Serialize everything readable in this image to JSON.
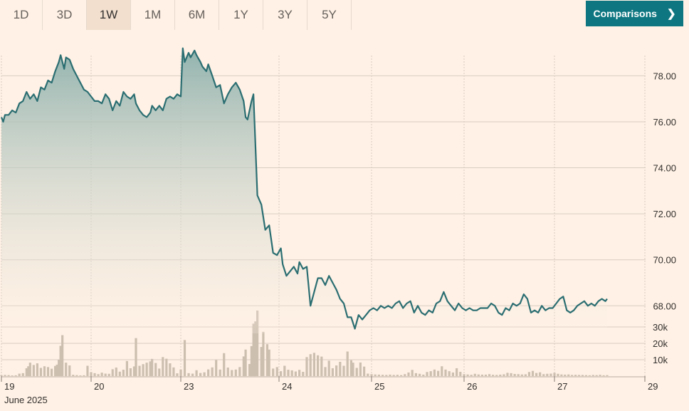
{
  "tabs": [
    {
      "label": "1D",
      "active": false
    },
    {
      "label": "3D",
      "active": false
    },
    {
      "label": "1W",
      "active": true
    },
    {
      "label": "1M",
      "active": false
    },
    {
      "label": "6M",
      "active": false
    },
    {
      "label": "1Y",
      "active": false
    },
    {
      "label": "3Y",
      "active": false
    },
    {
      "label": "5Y",
      "active": false
    }
  ],
  "comparisons": {
    "label": "Comparisons",
    "icon": "chevron-right-icon"
  },
  "colors": {
    "background": "#fff1e5",
    "line": "#2b6e72",
    "area_top": "#8cb0ab",
    "volume": "#cdbfb0",
    "grid": "#d9ccc1",
    "button": "#0d7680"
  },
  "chart_data": {
    "type": "line",
    "price_axis": {
      "ylim": [
        66.8,
        79.5
      ],
      "ticks": [
        68,
        70,
        72,
        74,
        76,
        78
      ],
      "tick_labels": [
        "68.00",
        "70.00",
        "72.00",
        "74.00",
        "76.00",
        "78.00"
      ]
    },
    "volume_axis": {
      "ylim": [
        0,
        40000
      ],
      "ticks": [
        10000,
        20000,
        30000
      ],
      "tick_labels": [
        "10k",
        "20k",
        "30k"
      ]
    },
    "x_axis": {
      "tick_labels": [
        "19",
        "20",
        "23",
        "24",
        "25",
        "26",
        "27",
        "29"
      ],
      "tick_days": [
        0,
        1,
        2,
        3,
        4,
        5,
        6,
        7.03
      ],
      "sublabel": "June 2025",
      "xlim": [
        0,
        7.1
      ]
    },
    "price_series": [
      [
        0.0,
        76.2
      ],
      [
        0.02,
        76.0
      ],
      [
        0.04,
        76.3
      ],
      [
        0.08,
        76.3
      ],
      [
        0.12,
        76.5
      ],
      [
        0.16,
        76.4
      ],
      [
        0.2,
        76.8
      ],
      [
        0.24,
        76.9
      ],
      [
        0.28,
        77.3
      ],
      [
        0.32,
        77.0
      ],
      [
        0.36,
        77.2
      ],
      [
        0.4,
        76.9
      ],
      [
        0.44,
        77.5
      ],
      [
        0.48,
        77.4
      ],
      [
        0.52,
        77.8
      ],
      [
        0.56,
        77.7
      ],
      [
        0.6,
        78.2
      ],
      [
        0.64,
        78.6
      ],
      [
        0.66,
        78.9
      ],
      [
        0.7,
        78.3
      ],
      [
        0.72,
        78.8
      ],
      [
        0.76,
        78.7
      ],
      [
        0.8,
        78.3
      ],
      [
        0.84,
        78.0
      ],
      [
        0.88,
        77.7
      ],
      [
        0.92,
        77.4
      ],
      [
        0.96,
        77.3
      ],
      [
        1.0,
        77.1
      ],
      [
        1.04,
        76.9
      ],
      [
        1.08,
        76.9
      ],
      [
        1.12,
        76.8
      ],
      [
        1.16,
        77.2
      ],
      [
        1.2,
        77.0
      ],
      [
        1.24,
        76.5
      ],
      [
        1.28,
        76.9
      ],
      [
        1.32,
        76.7
      ],
      [
        1.36,
        77.3
      ],
      [
        1.4,
        77.1
      ],
      [
        1.44,
        77.0
      ],
      [
        1.48,
        77.2
      ],
      [
        1.5,
        76.8
      ],
      [
        1.54,
        76.5
      ],
      [
        1.58,
        76.3
      ],
      [
        1.62,
        76.2
      ],
      [
        1.66,
        76.4
      ],
      [
        1.68,
        76.7
      ],
      [
        1.72,
        76.5
      ],
      [
        1.76,
        76.7
      ],
      [
        1.8,
        76.5
      ],
      [
        1.84,
        77.0
      ],
      [
        1.88,
        77.1
      ],
      [
        1.92,
        77.0
      ],
      [
        1.96,
        77.2
      ],
      [
        2.0,
        77.1
      ],
      [
        2.02,
        79.2
      ],
      [
        2.04,
        78.6
      ],
      [
        2.08,
        79.0
      ],
      [
        2.1,
        78.8
      ],
      [
        2.14,
        79.1
      ],
      [
        2.16,
        78.9
      ],
      [
        2.2,
        78.6
      ],
      [
        2.22,
        78.4
      ],
      [
        2.26,
        78.2
      ],
      [
        2.28,
        78.5
      ],
      [
        2.32,
        78.0
      ],
      [
        2.36,
        77.5
      ],
      [
        2.4,
        77.6
      ],
      [
        2.44,
        76.8
      ],
      [
        2.48,
        77.2
      ],
      [
        2.52,
        77.5
      ],
      [
        2.56,
        77.7
      ],
      [
        2.6,
        77.4
      ],
      [
        2.64,
        76.9
      ],
      [
        2.66,
        76.2
      ],
      [
        2.68,
        76.1
      ],
      [
        2.72,
        76.9
      ],
      [
        2.74,
        77.2
      ],
      [
        2.78,
        72.8
      ],
      [
        2.82,
        72.4
      ],
      [
        2.86,
        71.3
      ],
      [
        2.9,
        71.5
      ],
      [
        2.94,
        70.3
      ],
      [
        2.98,
        70.2
      ],
      [
        3.02,
        70.5
      ],
      [
        3.04,
        69.8
      ],
      [
        3.08,
        69.3
      ],
      [
        3.12,
        69.5
      ],
      [
        3.16,
        69.7
      ],
      [
        3.2,
        69.4
      ],
      [
        3.22,
        69.9
      ],
      [
        3.26,
        69.6
      ],
      [
        3.3,
        69.7
      ],
      [
        3.34,
        68.0
      ],
      [
        3.38,
        68.6
      ],
      [
        3.42,
        69.2
      ],
      [
        3.46,
        69.2
      ],
      [
        3.5,
        68.9
      ],
      [
        3.54,
        69.3
      ],
      [
        3.58,
        69.0
      ],
      [
        3.62,
        68.7
      ],
      [
        3.66,
        68.3
      ],
      [
        3.7,
        68.1
      ],
      [
        3.74,
        67.5
      ],
      [
        3.78,
        67.5
      ],
      [
        3.82,
        67.0
      ],
      [
        3.86,
        67.6
      ],
      [
        3.9,
        67.4
      ],
      [
        3.94,
        67.6
      ],
      [
        3.98,
        67.8
      ],
      [
        4.02,
        67.9
      ],
      [
        4.06,
        67.8
      ],
      [
        4.1,
        68.0
      ],
      [
        4.14,
        67.9
      ],
      [
        4.18,
        68.0
      ],
      [
        4.22,
        67.9
      ],
      [
        4.26,
        68.1
      ],
      [
        4.3,
        68.2
      ],
      [
        4.34,
        67.9
      ],
      [
        4.38,
        68.1
      ],
      [
        4.42,
        68.2
      ],
      [
        4.46,
        67.7
      ],
      [
        4.5,
        68.0
      ],
      [
        4.54,
        67.7
      ],
      [
        4.58,
        67.6
      ],
      [
        4.62,
        67.8
      ],
      [
        4.66,
        67.7
      ],
      [
        4.7,
        68.1
      ],
      [
        4.74,
        68.2
      ],
      [
        4.78,
        68.6
      ],
      [
        4.82,
        68.2
      ],
      [
        4.86,
        68.0
      ],
      [
        4.9,
        67.8
      ],
      [
        4.94,
        68.1
      ],
      [
        4.98,
        67.9
      ],
      [
        5.02,
        67.8
      ],
      [
        5.06,
        67.9
      ],
      [
        5.1,
        67.8
      ],
      [
        5.14,
        67.8
      ],
      [
        5.18,
        67.9
      ],
      [
        5.22,
        67.9
      ],
      [
        5.26,
        67.9
      ],
      [
        5.3,
        68.1
      ],
      [
        5.34,
        68.0
      ],
      [
        5.38,
        67.7
      ],
      [
        5.42,
        67.6
      ],
      [
        5.46,
        67.9
      ],
      [
        5.5,
        67.8
      ],
      [
        5.54,
        68.1
      ],
      [
        5.58,
        68.0
      ],
      [
        5.62,
        68.1
      ],
      [
        5.66,
        68.5
      ],
      [
        5.7,
        68.3
      ],
      [
        5.74,
        67.7
      ],
      [
        5.78,
        67.8
      ],
      [
        5.82,
        67.7
      ],
      [
        5.86,
        68.0
      ],
      [
        5.9,
        67.8
      ],
      [
        5.94,
        67.9
      ],
      [
        5.98,
        67.9
      ],
      [
        6.02,
        68.1
      ],
      [
        6.06,
        68.3
      ],
      [
        6.1,
        68.4
      ],
      [
        6.14,
        67.8
      ],
      [
        6.18,
        67.7
      ],
      [
        6.22,
        67.8
      ],
      [
        6.26,
        68.0
      ],
      [
        6.3,
        68.1
      ],
      [
        6.34,
        68.2
      ],
      [
        6.38,
        68.0
      ],
      [
        6.42,
        68.1
      ],
      [
        6.46,
        68.0
      ],
      [
        6.5,
        68.2
      ],
      [
        6.54,
        68.3
      ],
      [
        6.58,
        68.2
      ],
      [
        6.6,
        68.3
      ]
    ],
    "volume_series": [
      [
        0.0,
        600
      ],
      [
        0.04,
        700
      ],
      [
        0.08,
        600
      ],
      [
        0.12,
        400
      ],
      [
        0.16,
        500
      ],
      [
        0.2,
        1500
      ],
      [
        0.24,
        1800
      ],
      [
        0.28,
        4800
      ],
      [
        0.3,
        6000
      ],
      [
        0.32,
        8200
      ],
      [
        0.36,
        6800
      ],
      [
        0.4,
        7800
      ],
      [
        0.44,
        5000
      ],
      [
        0.48,
        6000
      ],
      [
        0.52,
        5500
      ],
      [
        0.56,
        4500
      ],
      [
        0.6,
        6200
      ],
      [
        0.62,
        7000
      ],
      [
        0.64,
        10000
      ],
      [
        0.66,
        18500
      ],
      [
        0.68,
        25000
      ],
      [
        0.72,
        8200
      ],
      [
        0.76,
        6500
      ],
      [
        0.8,
        800
      ],
      [
        0.84,
        600
      ],
      [
        0.88,
        400
      ],
      [
        0.92,
        500
      ],
      [
        0.96,
        6300
      ],
      [
        1.0,
        2400
      ],
      [
        1.04,
        1800
      ],
      [
        1.08,
        1200
      ],
      [
        1.12,
        2100
      ],
      [
        1.16,
        1500
      ],
      [
        1.2,
        1400
      ],
      [
        1.24,
        4200
      ],
      [
        1.28,
        5200
      ],
      [
        1.32,
        2700
      ],
      [
        1.36,
        3900
      ],
      [
        1.4,
        9200
      ],
      [
        1.44,
        4800
      ],
      [
        1.48,
        5900
      ],
      [
        1.5,
        23200
      ],
      [
        1.54,
        6300
      ],
      [
        1.58,
        7300
      ],
      [
        1.62,
        8200
      ],
      [
        1.66,
        9000
      ],
      [
        1.68,
        10500
      ],
      [
        1.72,
        8000
      ],
      [
        1.76,
        4600
      ],
      [
        1.8,
        11600
      ],
      [
        1.84,
        10600
      ],
      [
        1.88,
        7800
      ],
      [
        1.92,
        5300
      ],
      [
        1.96,
        1700
      ],
      [
        2.0,
        4000
      ],
      [
        2.04,
        22000
      ],
      [
        2.08,
        1800
      ],
      [
        2.12,
        1500
      ],
      [
        2.16,
        3600
      ],
      [
        2.2,
        1900
      ],
      [
        2.24,
        2300
      ],
      [
        2.28,
        4100
      ],
      [
        2.32,
        5300
      ],
      [
        2.36,
        9800
      ],
      [
        2.4,
        4000
      ],
      [
        2.44,
        14000
      ],
      [
        2.48,
        5200
      ],
      [
        2.52,
        3700
      ],
      [
        2.56,
        4000
      ],
      [
        2.6,
        5500
      ],
      [
        2.64,
        12000
      ],
      [
        2.66,
        16200
      ],
      [
        2.7,
        7400
      ],
      [
        2.72,
        18300
      ],
      [
        2.74,
        32000
      ],
      [
        2.76,
        33400
      ],
      [
        2.78,
        40000
      ],
      [
        2.82,
        17800
      ],
      [
        2.84,
        27000
      ],
      [
        2.88,
        19500
      ],
      [
        2.9,
        16200
      ],
      [
        2.94,
        4600
      ],
      [
        2.98,
        5500
      ],
      [
        3.02,
        3000
      ],
      [
        3.06,
        6300
      ],
      [
        3.1,
        3900
      ],
      [
        3.14,
        3500
      ],
      [
        3.18,
        2800
      ],
      [
        3.22,
        3800
      ],
      [
        3.26,
        2600
      ],
      [
        3.3,
        11600
      ],
      [
        3.34,
        13400
      ],
      [
        3.38,
        14200
      ],
      [
        3.42,
        12700
      ],
      [
        3.46,
        11900
      ],
      [
        3.5,
        5500
      ],
      [
        3.54,
        9400
      ],
      [
        3.58,
        4800
      ],
      [
        3.62,
        6500
      ],
      [
        3.66,
        8700
      ],
      [
        3.7,
        6300
      ],
      [
        3.74,
        15000
      ],
      [
        3.78,
        9700
      ],
      [
        3.8,
        8200
      ],
      [
        3.84,
        5000
      ],
      [
        3.88,
        8300
      ],
      [
        3.92,
        5800
      ],
      [
        3.96,
        1500
      ],
      [
        4.0,
        1200
      ],
      [
        4.04,
        1000
      ],
      [
        4.08,
        900
      ],
      [
        4.12,
        800
      ],
      [
        4.16,
        700
      ],
      [
        4.2,
        900
      ],
      [
        4.24,
        700
      ],
      [
        4.28,
        800
      ],
      [
        4.32,
        600
      ],
      [
        4.36,
        1200
      ],
      [
        4.4,
        2200
      ],
      [
        4.44,
        3800
      ],
      [
        4.48,
        1800
      ],
      [
        4.52,
        1400
      ],
      [
        4.56,
        900
      ],
      [
        4.6,
        2500
      ],
      [
        4.64,
        3000
      ],
      [
        4.68,
        4000
      ],
      [
        4.72,
        3200
      ],
      [
        4.76,
        6000
      ],
      [
        4.8,
        4000
      ],
      [
        4.84,
        3000
      ],
      [
        4.88,
        2200
      ],
      [
        4.92,
        4800
      ],
      [
        4.96,
        2600
      ],
      [
        5.0,
        1200
      ],
      [
        5.04,
        1000
      ],
      [
        5.08,
        800
      ],
      [
        5.12,
        1400
      ],
      [
        5.16,
        1000
      ],
      [
        5.2,
        900
      ],
      [
        5.24,
        900
      ],
      [
        5.28,
        1200
      ],
      [
        5.32,
        800
      ],
      [
        5.36,
        700
      ],
      [
        5.4,
        900
      ],
      [
        5.44,
        1100
      ],
      [
        5.48,
        2000
      ],
      [
        5.52,
        1800
      ],
      [
        5.56,
        1300
      ],
      [
        5.6,
        1200
      ],
      [
        5.64,
        1000
      ],
      [
        5.68,
        1100
      ],
      [
        5.72,
        2500
      ],
      [
        5.76,
        3200
      ],
      [
        5.8,
        1900
      ],
      [
        5.84,
        2300
      ],
      [
        5.88,
        1200
      ],
      [
        5.92,
        1400
      ],
      [
        5.96,
        1500
      ],
      [
        6.0,
        2000
      ],
      [
        6.04,
        1400
      ],
      [
        6.08,
        1000
      ],
      [
        6.12,
        900
      ],
      [
        6.16,
        1000
      ],
      [
        6.2,
        700
      ],
      [
        6.24,
        800
      ],
      [
        6.28,
        700
      ],
      [
        6.32,
        700
      ],
      [
        6.36,
        600
      ],
      [
        6.4,
        500
      ],
      [
        6.44,
        700
      ],
      [
        6.48,
        600
      ],
      [
        6.52,
        800
      ],
      [
        6.56,
        500
      ],
      [
        6.6,
        600
      ]
    ]
  }
}
